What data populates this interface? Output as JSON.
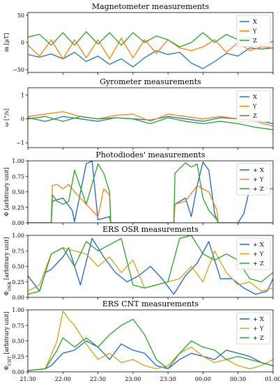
{
  "chart_data": [
    {
      "type": "line",
      "title": "Magnetometer measurements",
      "ylabel": "m [μT]",
      "ylim": [
        -55,
        55
      ],
      "yticks": [
        -50,
        0,
        50
      ],
      "ytick_labels": [
        "−50",
        "0",
        "50"
      ],
      "xlim": [
        "21:30",
        "01:00"
      ],
      "legend": {
        "position": "top-right"
      },
      "series": [
        {
          "name": "X",
          "color": "#1f77b4",
          "x": [
            "21:30",
            "21:40",
            "21:50",
            "22:00",
            "22:10",
            "22:20",
            "22:30",
            "22:40",
            "22:50",
            "23:00",
            "23:10",
            "23:20",
            "23:30",
            "23:40",
            "23:50",
            "00:00",
            "00:10",
            "00:20",
            "00:30",
            "00:40",
            "00:50",
            "01:00"
          ],
          "y": [
            -22,
            -27,
            -21,
            -30,
            -18,
            -35,
            -25,
            -40,
            -30,
            -45,
            -28,
            -15,
            -22,
            -18,
            -38,
            -48,
            -35,
            -20,
            -25,
            -10,
            -12,
            -10
          ]
        },
        {
          "name": "Y",
          "color": "#ff7f0e",
          "x": [
            "21:30",
            "21:40",
            "21:50",
            "22:00",
            "22:10",
            "22:20",
            "22:30",
            "22:40",
            "22:50",
            "23:00",
            "23:10",
            "23:20",
            "23:30",
            "23:40",
            "23:50",
            "00:00",
            "00:10",
            "00:20",
            "00:30",
            "00:40",
            "00:50",
            "01:00"
          ],
          "y": [
            -5,
            -25,
            5,
            -30,
            5,
            -28,
            5,
            -30,
            8,
            -28,
            5,
            -20,
            5,
            -10,
            -15,
            -8,
            5,
            -18,
            0,
            -15,
            -8,
            -10
          ]
        },
        {
          "name": "Z",
          "color": "#2ca02c",
          "x": [
            "21:30",
            "21:40",
            "21:50",
            "22:00",
            "22:10",
            "22:20",
            "22:30",
            "22:40",
            "22:50",
            "23:00",
            "23:10",
            "23:20",
            "23:30",
            "23:40",
            "23:50",
            "00:00",
            "00:10",
            "00:20",
            "00:30",
            "00:40",
            "00:50",
            "01:00"
          ],
          "y": [
            10,
            15,
            -5,
            18,
            -5,
            20,
            -3,
            18,
            -5,
            18,
            0,
            12,
            5,
            -8,
            0,
            18,
            0,
            15,
            5,
            10,
            -5,
            2
          ]
        }
      ]
    },
    {
      "type": "line",
      "title": "Gyrometer measurements",
      "ylabel": "ω [°/s]",
      "ylim": [
        -1.2,
        1.3
      ],
      "yticks": [
        -1,
        0,
        1
      ],
      "ytick_labels": [
        "−1",
        "0",
        "1"
      ],
      "xlim": [
        "21:30",
        "01:00"
      ],
      "legend": {
        "position": "top-right"
      },
      "series": [
        {
          "name": "X",
          "color": "#1f77b4",
          "x": [
            "21:30",
            "21:45",
            "22:00",
            "22:15",
            "22:30",
            "22:45",
            "23:00",
            "23:15",
            "23:30",
            "23:45",
            "00:00",
            "00:15",
            "00:30",
            "00:45",
            "01:00"
          ],
          "y": [
            0.05,
            -0.1,
            0.1,
            0.0,
            -0.1,
            0.05,
            0.0,
            -0.05,
            0.1,
            0.0,
            -0.1,
            0.05,
            0.0,
            -0.05,
            -0.2
          ]
        },
        {
          "name": "Y",
          "color": "#ff7f0e",
          "x": [
            "21:30",
            "21:45",
            "22:00",
            "22:15",
            "22:30",
            "22:45",
            "23:00",
            "23:15",
            "23:30",
            "23:45",
            "00:00",
            "00:15",
            "00:30",
            "00:45",
            "01:00"
          ],
          "y": [
            0.1,
            0.2,
            0.3,
            0.1,
            0.0,
            0.15,
            0.2,
            -0.1,
            0.2,
            0.1,
            0.0,
            0.1,
            0.0,
            -0.1,
            -0.3
          ]
        },
        {
          "name": "Z",
          "color": "#2ca02c",
          "x": [
            "21:30",
            "21:45",
            "22:00",
            "22:15",
            "22:30",
            "22:45",
            "23:00",
            "23:15",
            "23:30",
            "23:45",
            "00:00",
            "00:15",
            "00:30",
            "00:45",
            "01:00"
          ],
          "y": [
            0.0,
            0.1,
            -0.1,
            0.1,
            0.0,
            0.05,
            0.0,
            -0.2,
            0.05,
            -0.1,
            -0.2,
            -0.1,
            -0.2,
            -0.35,
            -0.45
          ]
        }
      ]
    },
    {
      "type": "line",
      "title": "Photodiodes' measurements",
      "ylabel": "Φ [arbitrary unit]",
      "ylim": [
        0,
        1
      ],
      "yticks": [
        0,
        0.25,
        0.5,
        0.75,
        1
      ],
      "ytick_labels": [
        "0.00",
        "0.25",
        "0.50",
        "0.75",
        "1.00"
      ],
      "xlim": [
        "21:30",
        "01:00"
      ],
      "legend": {
        "position": "top-right"
      },
      "series": [
        {
          "name": "+ X",
          "color": "#1f62c4",
          "x": [
            "21:30",
            "21:50",
            "21:51",
            "22:00",
            "22:08",
            "22:10",
            "22:20",
            "22:25",
            "22:30",
            "22:40",
            "22:41",
            "23:35",
            "23:36",
            "23:45",
            "23:50",
            "23:55",
            "00:00",
            "00:05",
            "00:10",
            "00:12",
            "00:13",
            "00:30",
            "00:35",
            "00:40",
            "01:00"
          ],
          "y": [
            0,
            0,
            0.35,
            0.4,
            0.2,
            0.02,
            0.95,
            1.0,
            0.05,
            0.1,
            0,
            0,
            0.3,
            0.4,
            0.1,
            0.6,
            0.98,
            0.85,
            0.15,
            0.05,
            0,
            0,
            0.15,
            0.55,
            0.55
          ]
        },
        {
          "name": "+ Y",
          "color": "#ff7f0e",
          "x": [
            "21:30",
            "21:50",
            "21:51",
            "21:55",
            "22:00",
            "22:05",
            "22:10",
            "22:20",
            "22:30",
            "22:35",
            "22:40",
            "22:41",
            "23:35",
            "23:36",
            "23:45",
            "23:55",
            "00:05",
            "00:12",
            "00:13",
            "01:00"
          ],
          "y": [
            0,
            0,
            0.6,
            0.62,
            0.55,
            0.62,
            0.5,
            0.3,
            0.1,
            0.55,
            0.45,
            0,
            0,
            0.3,
            0.35,
            0.6,
            0.5,
            0.2,
            0,
            0
          ]
        },
        {
          "name": "+ Z",
          "color": "#2ca02c",
          "x": [
            "21:30",
            "21:50",
            "21:51",
            "21:55",
            "22:00",
            "22:05",
            "22:10",
            "22:20",
            "22:30",
            "22:35",
            "22:40",
            "22:41",
            "23:35",
            "23:36",
            "23:45",
            "23:50",
            "23:55",
            "00:00",
            "00:05",
            "00:12",
            "00:13",
            "01:00"
          ],
          "y": [
            0,
            0,
            0.45,
            0.35,
            0.3,
            0.35,
            0.85,
            0.3,
            0.95,
            0.8,
            0.5,
            0,
            0,
            0.8,
            0.97,
            0.9,
            0.95,
            0.4,
            0.2,
            0.05,
            0,
            0
          ]
        }
      ]
    },
    {
      "type": "line",
      "title": "ERS OSR measurements",
      "ylabel": "Φ_OSR [arbitrary unit]",
      "ylim": [
        0,
        1
      ],
      "yticks": [
        0,
        0.25,
        0.5,
        0.75,
        1
      ],
      "ytick_labels": [
        "0.00",
        "0.25",
        "0.50",
        "0.75",
        "1.00"
      ],
      "xlim": [
        "21:30",
        "01:00"
      ],
      "legend": {
        "position": "top-right"
      },
      "series": [
        {
          "name": "+ X",
          "color": "#1f62c4",
          "x": [
            "21:30",
            "21:40",
            "21:45",
            "21:50",
            "22:00",
            "22:05",
            "22:15",
            "22:25",
            "22:35",
            "22:45",
            "22:55",
            "23:05",
            "23:15",
            "23:25",
            "23:35",
            "23:45",
            "23:55",
            "00:05",
            "00:15",
            "00:25",
            "00:35",
            "00:45",
            "00:55",
            "01:00"
          ],
          "y": [
            0.35,
            0.1,
            0.4,
            0.45,
            0.65,
            0.8,
            0.2,
            0.95,
            0.65,
            0.4,
            0.25,
            0.35,
            0.5,
            0.3,
            0.05,
            0.35,
            0.55,
            0.9,
            0.3,
            0.3,
            0.15,
            0.05,
            0.1,
            0.3
          ]
        },
        {
          "name": "+ Y",
          "color": "#d4a017",
          "x": [
            "21:30",
            "21:40",
            "21:50",
            "22:00",
            "22:10",
            "22:20",
            "22:30",
            "22:40",
            "22:50",
            "23:00",
            "23:10",
            "23:20",
            "23:30",
            "23:40",
            "23:50",
            "00:00",
            "00:10",
            "00:20",
            "00:30",
            "00:40",
            "00:50",
            "01:00"
          ],
          "y": [
            0.1,
            0.2,
            0.7,
            0.8,
            0.75,
            0.7,
            0.5,
            0.65,
            0.4,
            0.6,
            0.15,
            0.2,
            0.25,
            0.3,
            0.5,
            0.25,
            0.75,
            0.4,
            0.2,
            0.25,
            0.1,
            0.15
          ]
        },
        {
          "name": "+ Z",
          "color": "#2ca02c",
          "x": [
            "21:30",
            "21:40",
            "21:50",
            "22:00",
            "22:10",
            "22:20",
            "22:30",
            "22:40",
            "22:50",
            "23:00",
            "23:10",
            "23:20",
            "23:30",
            "23:40",
            "23:50",
            "00:00",
            "00:10",
            "00:20",
            "00:30",
            "00:40",
            "00:50",
            "01:00"
          ],
          "y": [
            0.05,
            0.1,
            0.7,
            0.8,
            0.5,
            0.9,
            0.75,
            0.85,
            0.95,
            0.2,
            0.15,
            0.2,
            0.25,
            0.95,
            1.0,
            0.7,
            0.6,
            0.7,
            0.6,
            0.3,
            0.25,
            0.4
          ]
        }
      ]
    },
    {
      "type": "line",
      "title": "ERS CNT measurements",
      "ylabel": "Φ_CNT [arbitrary unit]",
      "ylim": [
        0,
        1
      ],
      "yticks": [
        0,
        0.25,
        0.5,
        0.75,
        1
      ],
      "ytick_labels": [
        "0.00",
        "0.25",
        "0.50",
        "0.75",
        "1.00"
      ],
      "xlabel_ticks": [
        "21:30",
        "22:00",
        "22:30",
        "23:00",
        "23:30",
        "00:00",
        "00:30",
        "01:00"
      ],
      "xlim": [
        "21:30",
        "01:00"
      ],
      "legend": {
        "position": "top-right"
      },
      "series": [
        {
          "name": "+ X",
          "color": "#1f62c4",
          "x": [
            "21:30",
            "21:45",
            "21:50",
            "22:00",
            "22:10",
            "22:20",
            "22:30",
            "22:40",
            "22:50",
            "23:00",
            "23:10",
            "23:20",
            "23:30",
            "23:40",
            "23:50",
            "00:00",
            "00:10",
            "00:20",
            "00:30",
            "00:40",
            "00:50",
            "01:00"
          ],
          "y": [
            0.02,
            0.05,
            0.1,
            0.3,
            0.35,
            0.5,
            0.4,
            0.2,
            0.45,
            0.35,
            0.3,
            0.1,
            0.05,
            0.2,
            0.3,
            0.25,
            0.2,
            0.35,
            0.3,
            0.25,
            0.15,
            0.1
          ]
        },
        {
          "name": "+ Y",
          "color": "#d4a017",
          "x": [
            "21:30",
            "21:45",
            "21:55",
            "22:00",
            "22:05",
            "22:10",
            "22:20",
            "22:30",
            "22:40",
            "22:50",
            "23:00",
            "23:10",
            "23:20",
            "23:30",
            "23:40",
            "23:50",
            "00:00",
            "00:10",
            "00:20",
            "00:30",
            "00:40",
            "00:50",
            "01:00"
          ],
          "y": [
            0.02,
            0.05,
            0.5,
            0.98,
            0.85,
            0.75,
            0.45,
            0.2,
            0.3,
            0.15,
            0.2,
            0.1,
            0.05,
            0.1,
            0.3,
            0.4,
            0.25,
            0.15,
            0.2,
            0.1,
            0.05,
            0.1,
            0.2
          ]
        },
        {
          "name": "+ Z",
          "color": "#2ca02c",
          "x": [
            "21:30",
            "21:45",
            "21:55",
            "22:00",
            "22:10",
            "22:20",
            "22:30",
            "22:40",
            "22:50",
            "23:00",
            "23:10",
            "23:20",
            "23:30",
            "23:40",
            "23:50",
            "00:00",
            "00:10",
            "00:20",
            "00:30",
            "00:40",
            "00:50",
            "01:00"
          ],
          "y": [
            0.02,
            0.05,
            0.35,
            0.55,
            0.4,
            0.55,
            0.4,
            0.6,
            0.75,
            0.85,
            0.6,
            0.2,
            0.05,
            0.3,
            0.5,
            0.4,
            0.35,
            0.2,
            0.25,
            0.2,
            0.15,
            0.1
          ]
        }
      ]
    }
  ]
}
